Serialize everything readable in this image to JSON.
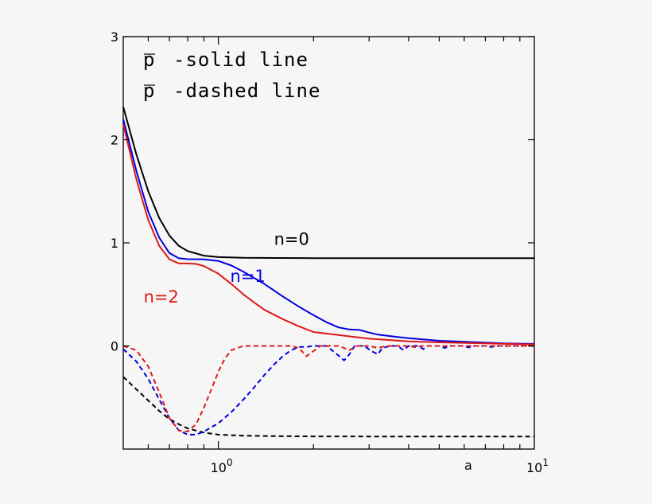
{
  "chart_data": {
    "type": "line",
    "xscale": "log",
    "xlim": [
      0.5,
      10
    ],
    "ylim": [
      -1,
      3
    ],
    "grid": false,
    "xlabel": "a",
    "ylabel": "",
    "x_ticks": [
      {
        "value": 1,
        "base": "10",
        "exp": "0"
      },
      {
        "value": 10,
        "base": "10",
        "exp": "1"
      }
    ],
    "y_ticks": [
      {
        "value": 0,
        "label": "0"
      },
      {
        "value": 1,
        "label": "1"
      },
      {
        "value": 2,
        "label": "2"
      },
      {
        "value": 3,
        "label": "3"
      }
    ],
    "legend": {
      "placement": "top-left",
      "symbol": "p",
      "entries": [
        {
          "label": "-solid line",
          "style": "solid"
        },
        {
          "label": "-dashed line",
          "style": "dashed"
        }
      ]
    },
    "series": [
      {
        "label": "n=0",
        "color": "#000000",
        "style": "solid",
        "points": [
          [
            0.5,
            2.32
          ],
          [
            0.55,
            1.86
          ],
          [
            0.6,
            1.5
          ],
          [
            0.65,
            1.24
          ],
          [
            0.7,
            1.07
          ],
          [
            0.75,
            0.97
          ],
          [
            0.8,
            0.92
          ],
          [
            0.9,
            0.876
          ],
          [
            1.0,
            0.862
          ],
          [
            1.2,
            0.855
          ],
          [
            1.5,
            0.853
          ],
          [
            2.0,
            0.852
          ],
          [
            3.0,
            0.852
          ],
          [
            5.0,
            0.852
          ],
          [
            10.0,
            0.852
          ]
        ]
      },
      {
        "label": "n=1",
        "color": "#0000e0",
        "style": "solid",
        "points": [
          [
            0.5,
            2.2
          ],
          [
            0.55,
            1.7
          ],
          [
            0.6,
            1.3
          ],
          [
            0.65,
            1.05
          ],
          [
            0.7,
            0.9
          ],
          [
            0.75,
            0.85
          ],
          [
            0.8,
            0.842
          ],
          [
            0.9,
            0.84
          ],
          [
            1.0,
            0.825
          ],
          [
            1.1,
            0.78
          ],
          [
            1.2,
            0.72
          ],
          [
            1.4,
            0.6
          ],
          [
            1.6,
            0.48
          ],
          [
            1.8,
            0.38
          ],
          [
            2.0,
            0.3
          ],
          [
            2.2,
            0.23
          ],
          [
            2.4,
            0.18
          ],
          [
            2.6,
            0.16
          ],
          [
            2.8,
            0.155
          ],
          [
            3.0,
            0.13
          ],
          [
            3.2,
            0.11
          ],
          [
            3.6,
            0.09
          ],
          [
            4.0,
            0.075
          ],
          [
            5.0,
            0.05
          ],
          [
            6.0,
            0.04
          ],
          [
            8.0,
            0.025
          ],
          [
            10.0,
            0.02
          ]
        ]
      },
      {
        "label": "n=2",
        "color": "#e01818",
        "style": "solid",
        "points": [
          [
            0.5,
            2.15
          ],
          [
            0.55,
            1.62
          ],
          [
            0.6,
            1.22
          ],
          [
            0.65,
            0.97
          ],
          [
            0.7,
            0.84
          ],
          [
            0.75,
            0.8
          ],
          [
            0.8,
            0.8
          ],
          [
            0.85,
            0.795
          ],
          [
            0.9,
            0.775
          ],
          [
            1.0,
            0.7
          ],
          [
            1.1,
            0.6
          ],
          [
            1.2,
            0.5
          ],
          [
            1.3,
            0.42
          ],
          [
            1.4,
            0.35
          ],
          [
            1.6,
            0.26
          ],
          [
            1.8,
            0.19
          ],
          [
            2.0,
            0.135
          ],
          [
            2.2,
            0.12
          ],
          [
            2.5,
            0.1
          ],
          [
            3.0,
            0.07
          ],
          [
            4.0,
            0.045
          ],
          [
            5.0,
            0.035
          ],
          [
            7.0,
            0.025
          ],
          [
            10.0,
            0.015
          ]
        ]
      },
      {
        "label": "",
        "color": "#000000",
        "style": "dashed",
        "points": [
          [
            0.5,
            -0.3
          ],
          [
            0.55,
            -0.42
          ],
          [
            0.6,
            -0.53
          ],
          [
            0.65,
            -0.63
          ],
          [
            0.7,
            -0.71
          ],
          [
            0.75,
            -0.76
          ],
          [
            0.8,
            -0.8
          ],
          [
            0.9,
            -0.84
          ],
          [
            1.0,
            -0.86
          ],
          [
            1.2,
            -0.87
          ],
          [
            1.5,
            -0.875
          ],
          [
            2.0,
            -0.877
          ],
          [
            3.0,
            -0.878
          ],
          [
            5.0,
            -0.878
          ],
          [
            10.0,
            -0.878
          ]
        ]
      },
      {
        "label": "",
        "color": "#0000e0",
        "style": "dashed",
        "points": [
          [
            0.5,
            -0.03
          ],
          [
            0.55,
            -0.15
          ],
          [
            0.6,
            -0.32
          ],
          [
            0.65,
            -0.52
          ],
          [
            0.7,
            -0.7
          ],
          [
            0.75,
            -0.82
          ],
          [
            0.8,
            -0.86
          ],
          [
            0.85,
            -0.86
          ],
          [
            0.9,
            -0.83
          ],
          [
            1.0,
            -0.75
          ],
          [
            1.1,
            -0.64
          ],
          [
            1.2,
            -0.52
          ],
          [
            1.3,
            -0.4
          ],
          [
            1.4,
            -0.28
          ],
          [
            1.5,
            -0.18
          ],
          [
            1.6,
            -0.1
          ],
          [
            1.7,
            -0.04
          ],
          [
            1.8,
            -0.01
          ],
          [
            1.9,
            -0.01
          ],
          [
            2.0,
            0.0
          ],
          [
            2.2,
            0.0
          ],
          [
            2.35,
            -0.07
          ],
          [
            2.5,
            -0.14
          ],
          [
            2.6,
            -0.08
          ],
          [
            2.7,
            0.0
          ],
          [
            2.9,
            0.0
          ],
          [
            3.05,
            -0.05
          ],
          [
            3.2,
            -0.08
          ],
          [
            3.3,
            -0.02
          ],
          [
            3.5,
            0.0
          ],
          [
            3.7,
            0.0
          ],
          [
            3.85,
            -0.04
          ],
          [
            4.0,
            0.0
          ],
          [
            4.3,
            0.0
          ],
          [
            4.45,
            -0.03
          ],
          [
            4.6,
            0.0
          ],
          [
            5.0,
            0.0
          ],
          [
            5.2,
            -0.02
          ],
          [
            5.4,
            0.0
          ],
          [
            6.0,
            0.0
          ],
          [
            6.2,
            -0.015
          ],
          [
            6.4,
            0.0
          ],
          [
            7.0,
            0.0
          ],
          [
            7.3,
            -0.01
          ],
          [
            7.6,
            0.0
          ],
          [
            8.5,
            0.0
          ],
          [
            10.0,
            0.0
          ]
        ]
      },
      {
        "label": "",
        "color": "#e01818",
        "style": "dashed",
        "points": [
          [
            0.5,
            0.0
          ],
          [
            0.55,
            -0.04
          ],
          [
            0.6,
            -0.2
          ],
          [
            0.65,
            -0.45
          ],
          [
            0.7,
            -0.7
          ],
          [
            0.75,
            -0.82
          ],
          [
            0.8,
            -0.83
          ],
          [
            0.85,
            -0.76
          ],
          [
            0.9,
            -0.6
          ],
          [
            0.95,
            -0.42
          ],
          [
            1.0,
            -0.25
          ],
          [
            1.05,
            -0.12
          ],
          [
            1.1,
            -0.04
          ],
          [
            1.2,
            0.0
          ],
          [
            1.4,
            0.0
          ],
          [
            1.7,
            0.0
          ],
          [
            1.8,
            -0.02
          ],
          [
            1.9,
            -0.1
          ],
          [
            2.0,
            -0.05
          ],
          [
            2.1,
            0.0
          ],
          [
            2.4,
            0.0
          ],
          [
            2.6,
            -0.04
          ],
          [
            2.75,
            0.0
          ],
          [
            3.0,
            0.0
          ],
          [
            3.2,
            -0.02
          ],
          [
            3.4,
            0.0
          ],
          [
            4.0,
            0.0
          ],
          [
            4.2,
            -0.012
          ],
          [
            4.4,
            0.0
          ],
          [
            5.0,
            0.0
          ],
          [
            10.0,
            0.0
          ]
        ]
      }
    ],
    "annotations": [
      {
        "text": "n=0",
        "color": "#000000",
        "x": 1.5,
        "y": 0.98
      },
      {
        "text": "n=1",
        "color": "#0000e0",
        "x": 1.09,
        "y": 0.62
      },
      {
        "text": "n=2",
        "color": "#e01818",
        "x": 0.58,
        "y": 0.42
      }
    ]
  }
}
